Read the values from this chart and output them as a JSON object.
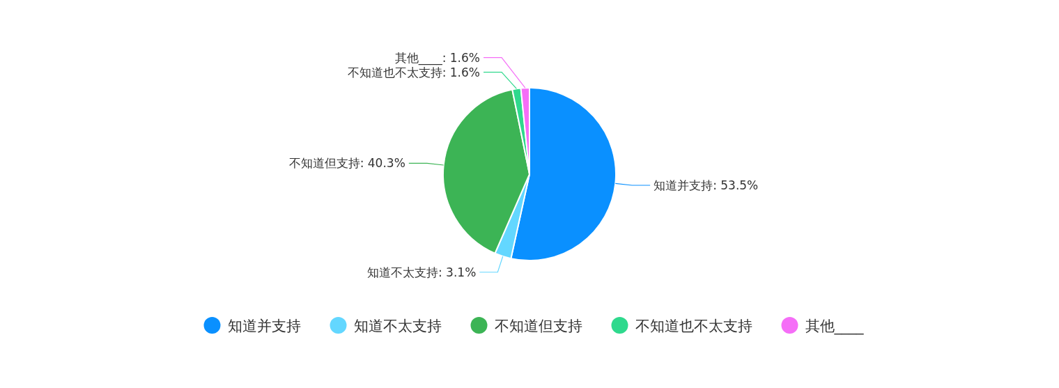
{
  "chart_data": {
    "type": "pie",
    "categories": [
      "知道并支持",
      "知道不太支持",
      "不知道但支持",
      "不知道也不太支持",
      "其他____"
    ],
    "values": [
      53.5,
      3.1,
      40.3,
      1.6,
      1.6
    ],
    "value_labels": [
      ": 53.5%",
      ": 3.1%",
      ": 40.3%",
      ": 1.6%",
      ": 1.6%"
    ],
    "colors": [
      "#0a90ff",
      "#63d7ff",
      "#3cb455",
      "#2fd98d",
      "#f56ef7"
    ],
    "legend": "bottom"
  }
}
